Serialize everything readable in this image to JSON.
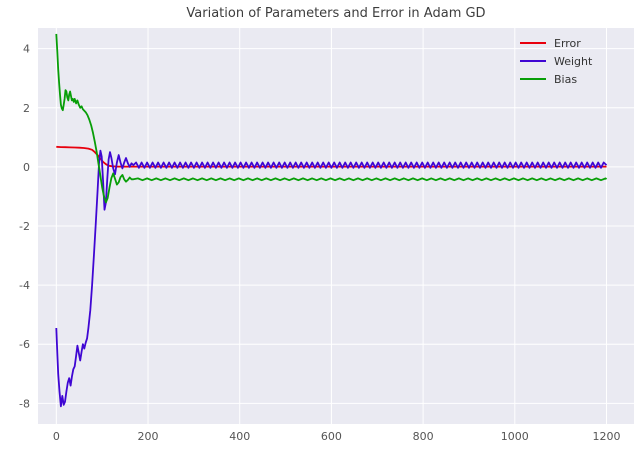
{
  "chart_data": {
    "type": "line",
    "title": "Variation of Parameters and Error in Adam GD",
    "xlabel": "",
    "ylabel": "",
    "xlim": [
      -40,
      1260
    ],
    "ylim": [
      -8.7,
      4.7
    ],
    "xticks": [
      0,
      200,
      400,
      600,
      800,
      1000,
      1200
    ],
    "yticks": [
      -8,
      -6,
      -4,
      -2,
      0,
      2,
      4
    ],
    "grid": true,
    "legend": {
      "position": "upper right",
      "entries": [
        "Error",
        "Weight",
        "Bias"
      ]
    },
    "style": {
      "plot_background": "#eaeaf2",
      "figure_background": "#ffffff",
      "grid_color": "#ffffff",
      "title_color": "#3d3d3d",
      "tick_color": "#555555",
      "legend_text_color": "#333333"
    },
    "series": [
      {
        "name": "Error",
        "color": "#e8000d",
        "width": 1.8,
        "points": [
          [
            0,
            0.68
          ],
          [
            10,
            0.67
          ],
          [
            20,
            0.665
          ],
          [
            30,
            0.66
          ],
          [
            40,
            0.655
          ],
          [
            50,
            0.65
          ],
          [
            60,
            0.64
          ],
          [
            70,
            0.62
          ],
          [
            78,
            0.58
          ],
          [
            84,
            0.5
          ],
          [
            90,
            0.4
          ],
          [
            96,
            0.28
          ],
          [
            102,
            0.17
          ],
          [
            108,
            0.09
          ],
          [
            114,
            0.04
          ],
          [
            122,
            0.02
          ],
          [
            135,
            0.01
          ],
          [
            150,
            0.01
          ]
        ],
        "tail": {
          "from": 150,
          "to": 1200,
          "step": 50,
          "base": 0.01,
          "amplitude": 0.0
        }
      },
      {
        "name": "Weight",
        "color": "#3f06d3",
        "width": 1.8,
        "points": [
          [
            0,
            -5.45
          ],
          [
            2,
            -6.3
          ],
          [
            4,
            -7.0
          ],
          [
            7,
            -7.6
          ],
          [
            10,
            -8.1
          ],
          [
            13,
            -7.75
          ],
          [
            16,
            -8.05
          ],
          [
            19,
            -7.95
          ],
          [
            22,
            -7.6
          ],
          [
            25,
            -7.3
          ],
          [
            28,
            -7.15
          ],
          [
            31,
            -7.4
          ],
          [
            34,
            -7.1
          ],
          [
            37,
            -6.85
          ],
          [
            40,
            -6.75
          ],
          [
            43,
            -6.4
          ],
          [
            46,
            -6.05
          ],
          [
            49,
            -6.3
          ],
          [
            52,
            -6.55
          ],
          [
            55,
            -6.25
          ],
          [
            58,
            -6.0
          ],
          [
            61,
            -6.15
          ],
          [
            64,
            -5.95
          ],
          [
            67,
            -5.8
          ],
          [
            70,
            -5.45
          ],
          [
            74,
            -4.85
          ],
          [
            78,
            -4.0
          ],
          [
            82,
            -3.0
          ],
          [
            86,
            -1.9
          ],
          [
            90,
            -0.8
          ],
          [
            93,
            0.1
          ],
          [
            96,
            0.55
          ],
          [
            99,
            0.35
          ],
          [
            102,
            -0.5
          ],
          [
            105,
            -1.45
          ],
          [
            108,
            -1.2
          ],
          [
            111,
            -0.45
          ],
          [
            114,
            0.25
          ],
          [
            117,
            0.5
          ],
          [
            120,
            0.3
          ],
          [
            124,
            -0.05
          ],
          [
            128,
            -0.25
          ],
          [
            132,
            0.15
          ],
          [
            136,
            0.4
          ],
          [
            140,
            0.15
          ],
          [
            144,
            -0.05
          ],
          [
            148,
            0.15
          ],
          [
            152,
            0.3
          ],
          [
            156,
            0.12
          ],
          [
            160,
            0.0
          ],
          [
            164,
            0.12
          ],
          [
            168,
            0.06
          ]
        ],
        "tail": {
          "from": 168,
          "to": 1200,
          "step": 6,
          "base": 0.06,
          "amplitude": 0.09
        }
      },
      {
        "name": "Bias",
        "color": "#089e08",
        "width": 1.8,
        "points": [
          [
            0,
            4.5
          ],
          [
            2,
            3.9
          ],
          [
            4,
            3.3
          ],
          [
            6,
            2.85
          ],
          [
            8,
            2.45
          ],
          [
            10,
            2.1
          ],
          [
            12,
            1.98
          ],
          [
            14,
            1.92
          ],
          [
            16,
            2.1
          ],
          [
            18,
            2.3
          ],
          [
            20,
            2.6
          ],
          [
            22,
            2.55
          ],
          [
            24,
            2.35
          ],
          [
            26,
            2.25
          ],
          [
            28,
            2.45
          ],
          [
            30,
            2.55
          ],
          [
            32,
            2.4
          ],
          [
            34,
            2.25
          ],
          [
            36,
            2.3
          ],
          [
            38,
            2.2
          ],
          [
            40,
            2.3
          ],
          [
            43,
            2.15
          ],
          [
            46,
            2.25
          ],
          [
            49,
            2.1
          ],
          [
            52,
            2.0
          ],
          [
            55,
            2.05
          ],
          [
            58,
            1.95
          ],
          [
            61,
            1.9
          ],
          [
            64,
            1.85
          ],
          [
            68,
            1.75
          ],
          [
            72,
            1.6
          ],
          [
            76,
            1.4
          ],
          [
            80,
            1.15
          ],
          [
            84,
            0.85
          ],
          [
            88,
            0.5
          ],
          [
            92,
            0.1
          ],
          [
            96,
            -0.3
          ],
          [
            100,
            -0.7
          ],
          [
            104,
            -1.0
          ],
          [
            108,
            -1.2
          ],
          [
            112,
            -1.05
          ],
          [
            116,
            -0.7
          ],
          [
            120,
            -0.38
          ],
          [
            124,
            -0.22
          ],
          [
            128,
            -0.4
          ],
          [
            132,
            -0.6
          ],
          [
            136,
            -0.52
          ],
          [
            140,
            -0.35
          ],
          [
            144,
            -0.27
          ],
          [
            148,
            -0.42
          ],
          [
            152,
            -0.5
          ],
          [
            156,
            -0.44
          ],
          [
            160,
            -0.36
          ],
          [
            164,
            -0.42
          ],
          [
            168,
            -0.42
          ]
        ],
        "tail": {
          "from": 168,
          "to": 1200,
          "step": 10,
          "base": -0.42,
          "amplitude": 0.03
        }
      }
    ]
  }
}
